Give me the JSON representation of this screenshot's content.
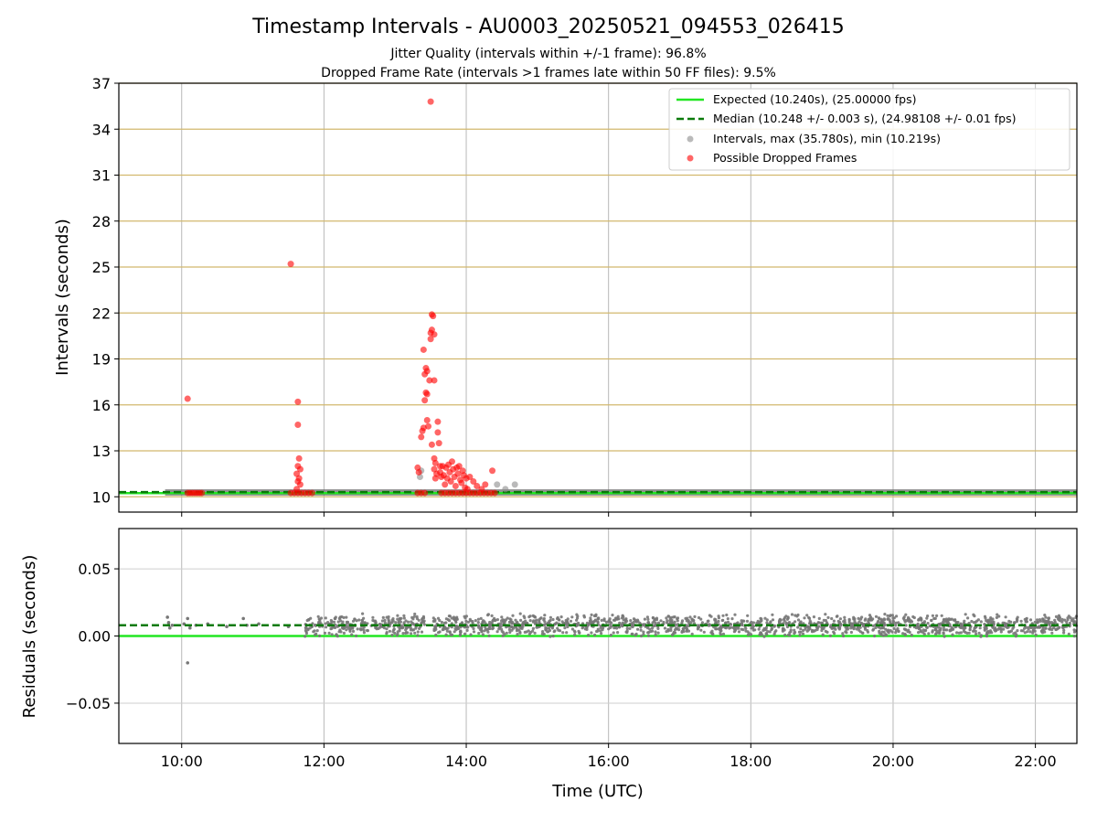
{
  "chart_data": {
    "title": "Timestamp Intervals - AU0003_20250521_094553_026415",
    "subtitle_1": "Jitter Quality (intervals within +/-1 frame): 96.8%",
    "subtitle_2": "Dropped Frame Rate (intervals >1 frames late within 50 FF files): 9.5%",
    "xlabel": "Time (UTC)",
    "x_ticks": [
      "10:00",
      "12:00",
      "14:00",
      "16:00",
      "18:00",
      "20:00",
      "22:00"
    ],
    "xlim": [
      "09:07",
      "22:35"
    ],
    "top_panel": {
      "type": "scatter",
      "ylabel": "Intervals (seconds)",
      "ylim": [
        9,
        37
      ],
      "y_ticks": [
        "10",
        "13",
        "16",
        "19",
        "22",
        "25",
        "28",
        "31",
        "34",
        "37"
      ],
      "grid": true,
      "legend_position": "top-right",
      "expected_value": 10.24,
      "median_value": 10.248,
      "legend": [
        "Expected (10.240s), (25.00000 fps)",
        "Median (10.248 +/- 0.003 s), (24.98108 +/- 0.01 fps)",
        "Intervals, max (35.780s), min (10.219s)",
        "Possible Dropped Frames"
      ],
      "series": [
        {
          "name": "Intervals, max (35.780s), min (10.219s)",
          "color": "#8c8c8c",
          "band": {
            "start": "09:46",
            "end": "22:35",
            "value": 10.25
          },
          "points": [
            {
              "x": "13:21",
              "y": 11.3
            },
            {
              "x": "13:22",
              "y": 11.7
            },
            {
              "x": "14:26",
              "y": 10.8
            },
            {
              "x": "14:33",
              "y": 10.5
            },
            {
              "x": "14:41",
              "y": 10.8
            }
          ]
        },
        {
          "name": "Possible Dropped Frames",
          "color": "#ff0000",
          "points": [
            {
              "x": "10:05",
              "y": 16.4
            },
            {
              "x": "10:05",
              "y": 10.25
            },
            {
              "x": "10:07",
              "y": 10.25
            },
            {
              "x": "10:09",
              "y": 10.25
            },
            {
              "x": "10:11",
              "y": 10.25
            },
            {
              "x": "10:13",
              "y": 10.25
            },
            {
              "x": "10:15",
              "y": 10.25
            },
            {
              "x": "10:17",
              "y": 10.25
            },
            {
              "x": "11:32",
              "y": 25.2
            },
            {
              "x": "11:32",
              "y": 10.25
            },
            {
              "x": "11:35",
              "y": 10.25
            },
            {
              "x": "11:38",
              "y": 10.25
            },
            {
              "x": "11:38",
              "y": 16.2
            },
            {
              "x": "11:38",
              "y": 14.7
            },
            {
              "x": "11:39",
              "y": 12.5
            },
            {
              "x": "11:38",
              "y": 12.0
            },
            {
              "x": "11:40",
              "y": 11.8
            },
            {
              "x": "11:37",
              "y": 11.5
            },
            {
              "x": "11:39",
              "y": 11.2
            },
            {
              "x": "11:38",
              "y": 11.0
            },
            {
              "x": "11:40",
              "y": 10.8
            },
            {
              "x": "11:37",
              "y": 10.5
            },
            {
              "x": "11:41",
              "y": 10.25
            },
            {
              "x": "11:44",
              "y": 10.25
            },
            {
              "x": "11:47",
              "y": 10.25
            },
            {
              "x": "11:50",
              "y": 10.25
            },
            {
              "x": "13:19",
              "y": 10.25
            },
            {
              "x": "13:22",
              "y": 10.25
            },
            {
              "x": "13:25",
              "y": 10.25
            },
            {
              "x": "13:19",
              "y": 11.9
            },
            {
              "x": "13:20",
              "y": 11.6
            },
            {
              "x": "13:22",
              "y": 13.9
            },
            {
              "x": "13:23",
              "y": 14.3
            },
            {
              "x": "13:24",
              "y": 14.5
            },
            {
              "x": "13:25",
              "y": 16.3
            },
            {
              "x": "13:26",
              "y": 16.8
            },
            {
              "x": "13:27",
              "y": 16.7
            },
            {
              "x": "13:25",
              "y": 18.0
            },
            {
              "x": "13:26",
              "y": 18.4
            },
            {
              "x": "13:27",
              "y": 18.2
            },
            {
              "x": "13:24",
              "y": 19.6
            },
            {
              "x": "13:27",
              "y": 15.0
            },
            {
              "x": "13:28",
              "y": 14.6
            },
            {
              "x": "13:29",
              "y": 17.6
            },
            {
              "x": "13:30",
              "y": 20.3
            },
            {
              "x": "13:30",
              "y": 20.7
            },
            {
              "x": "13:31",
              "y": 20.9
            },
            {
              "x": "13:31",
              "y": 21.9
            },
            {
              "x": "13:32",
              "y": 21.8
            },
            {
              "x": "13:33",
              "y": 17.6
            },
            {
              "x": "13:33",
              "y": 20.6
            },
            {
              "x": "13:31",
              "y": 13.4
            },
            {
              "x": "13:33",
              "y": 12.5
            },
            {
              "x": "13:34",
              "y": 12.2
            },
            {
              "x": "13:33",
              "y": 11.8
            },
            {
              "x": "13:34",
              "y": 11.2
            },
            {
              "x": "13:35",
              "y": 11.5
            },
            {
              "x": "13:36",
              "y": 14.9
            },
            {
              "x": "13:36",
              "y": 14.2
            },
            {
              "x": "13:37",
              "y": 13.5
            },
            {
              "x": "13:38",
              "y": 12.0
            },
            {
              "x": "13:38",
              "y": 11.6
            },
            {
              "x": "13:39",
              "y": 11.3
            },
            {
              "x": "13:30",
              "y": 35.8
            },
            {
              "x": "13:40",
              "y": 12.0
            },
            {
              "x": "13:41",
              "y": 11.4
            },
            {
              "x": "13:42",
              "y": 10.8
            },
            {
              "x": "13:43",
              "y": 11.9
            },
            {
              "x": "13:44",
              "y": 11.2
            },
            {
              "x": "13:45",
              "y": 12.1
            },
            {
              "x": "13:46",
              "y": 11.6
            },
            {
              "x": "13:47",
              "y": 11.0
            },
            {
              "x": "13:48",
              "y": 12.3
            },
            {
              "x": "13:49",
              "y": 11.8
            },
            {
              "x": "13:50",
              "y": 11.3
            },
            {
              "x": "13:51",
              "y": 10.7
            },
            {
              "x": "13:52",
              "y": 11.9
            },
            {
              "x": "13:53",
              "y": 11.5
            },
            {
              "x": "13:54",
              "y": 12.0
            },
            {
              "x": "13:55",
              "y": 11.1
            },
            {
              "x": "13:56",
              "y": 10.9
            },
            {
              "x": "13:57",
              "y": 11.7
            },
            {
              "x": "13:58",
              "y": 11.4
            },
            {
              "x": "13:59",
              "y": 10.6
            },
            {
              "x": "14:00",
              "y": 11.2
            },
            {
              "x": "14:01",
              "y": 10.5
            },
            {
              "x": "14:03",
              "y": 11.3
            },
            {
              "x": "14:06",
              "y": 11.0
            },
            {
              "x": "14:09",
              "y": 10.7
            },
            {
              "x": "14:13",
              "y": 10.5
            },
            {
              "x": "14:16",
              "y": 10.8
            },
            {
              "x": "14:22",
              "y": 11.7
            },
            {
              "x": "13:39",
              "y": 10.25
            },
            {
              "x": "13:42",
              "y": 10.25
            },
            {
              "x": "13:45",
              "y": 10.25
            },
            {
              "x": "13:48",
              "y": 10.25
            },
            {
              "x": "13:51",
              "y": 10.25
            },
            {
              "x": "13:54",
              "y": 10.25
            },
            {
              "x": "13:57",
              "y": 10.25
            },
            {
              "x": "14:00",
              "y": 10.25
            },
            {
              "x": "14:03",
              "y": 10.25
            },
            {
              "x": "14:06",
              "y": 10.25
            },
            {
              "x": "14:09",
              "y": 10.25
            },
            {
              "x": "14:12",
              "y": 10.25
            },
            {
              "x": "14:15",
              "y": 10.25
            },
            {
              "x": "14:18",
              "y": 10.25
            },
            {
              "x": "14:21",
              "y": 10.25
            },
            {
              "x": "14:24",
              "y": 10.25
            }
          ]
        }
      ]
    },
    "bottom_panel": {
      "type": "scatter",
      "ylabel": "Residuals (seconds)",
      "ylim": [
        -0.08,
        0.08
      ],
      "y_ticks": [
        "0.05",
        "0.00",
        "−0.05"
      ],
      "y_tick_values": [
        0.05,
        0,
        -0.05
      ],
      "grid": true,
      "expected_residual": 0.0,
      "median_residual": 0.008,
      "series": [
        {
          "name": "Residuals",
          "color": "#777777",
          "points": [
            {
              "x": "09:48",
              "y": 0.014
            },
            {
              "x": "09:49",
              "y": 0.01
            },
            {
              "x": "09:50",
              "y": 0.006
            },
            {
              "x": "09:52",
              "y": 0.008
            },
            {
              "x": "10:02",
              "y": 0.009
            },
            {
              "x": "10:05",
              "y": 0.013
            },
            {
              "x": "10:05",
              "y": -0.02
            },
            {
              "x": "10:07",
              "y": 0.006
            },
            {
              "x": "10:12",
              "y": 0.008
            },
            {
              "x": "10:22",
              "y": 0.009
            },
            {
              "x": "10:38",
              "y": 0.007
            },
            {
              "x": "10:52",
              "y": 0.013
            },
            {
              "x": "10:55",
              "y": 0.008
            },
            {
              "x": "11:05",
              "y": 0.009
            },
            {
              "x": "11:30",
              "y": 0.007
            }
          ],
          "dense_bands": [
            {
              "start": "11:44",
              "end": "13:25",
              "center": 0.008,
              "spread": 0.009
            },
            {
              "start": "13:32",
              "end": "22:35",
              "center": 0.008,
              "spread": 0.009
            }
          ]
        }
      ]
    }
  }
}
